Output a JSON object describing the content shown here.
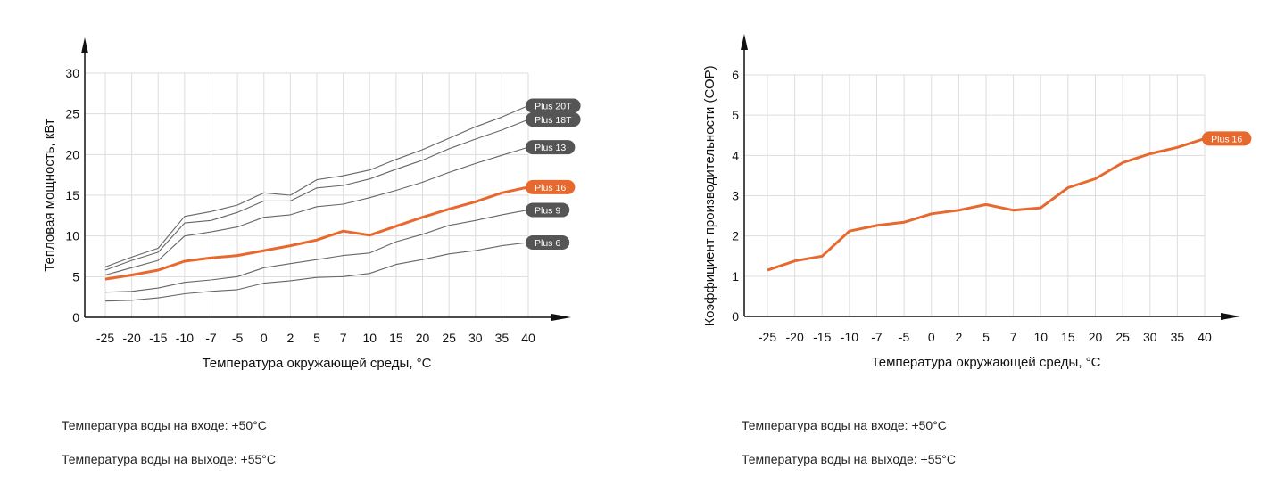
{
  "colors": {
    "accent": "#e8692d",
    "gray_line": "#666666",
    "grid": "#dddddd",
    "axis": "#111111",
    "label_gray": "#555555"
  },
  "chart_data": [
    {
      "type": "line",
      "x": [
        "-25",
        "-20",
        "-15",
        "-10",
        "-7",
        "-5",
        "0",
        "2",
        "5",
        "7",
        "10",
        "15",
        "20",
        "25",
        "30",
        "35",
        "40"
      ],
      "xlabel": "Температура окружающей среды, °С",
      "ylabel": "Тепловая мощность, кВт",
      "yticks": [
        "0",
        "5",
        "10",
        "15",
        "20",
        "25",
        "30"
      ],
      "ylim": [
        0,
        30
      ],
      "grid": true,
      "series": [
        {
          "name": "Plus 20T",
          "color": "#666666",
          "highlight": false,
          "values": [
            6.2,
            7.4,
            8.5,
            12.4,
            13.0,
            13.8,
            15.3,
            15.0,
            16.9,
            17.4,
            18.1,
            19.4,
            20.6,
            22.0,
            23.4,
            24.6,
            26.0
          ]
        },
        {
          "name": "Plus 18T",
          "color": "#666666",
          "highlight": false,
          "values": [
            5.8,
            7.0,
            8.0,
            11.6,
            11.9,
            12.9,
            14.3,
            14.3,
            15.9,
            16.2,
            17.0,
            18.2,
            19.3,
            20.7,
            21.9,
            23.0,
            24.3
          ]
        },
        {
          "name": "Plus 13",
          "color": "#666666",
          "highlight": false,
          "values": [
            5.2,
            6.1,
            7.0,
            10.0,
            10.5,
            11.1,
            12.3,
            12.6,
            13.6,
            13.9,
            14.7,
            15.6,
            16.6,
            17.8,
            18.9,
            19.9,
            20.9
          ]
        },
        {
          "name": "Plus 16",
          "color": "#e8692d",
          "highlight": true,
          "values": [
            4.7,
            5.2,
            5.8,
            6.9,
            7.3,
            7.6,
            8.2,
            8.8,
            9.5,
            10.6,
            10.1,
            11.2,
            12.3,
            13.3,
            14.2,
            15.3,
            16.0
          ]
        },
        {
          "name": "Plus 9",
          "color": "#666666",
          "highlight": false,
          "values": [
            3.1,
            3.2,
            3.6,
            4.3,
            4.6,
            5.0,
            6.1,
            6.6,
            7.1,
            7.6,
            7.9,
            9.3,
            10.2,
            11.3,
            11.9,
            12.6,
            13.2
          ]
        },
        {
          "name": "Plus 6",
          "color": "#666666",
          "highlight": false,
          "values": [
            2.0,
            2.1,
            2.4,
            2.9,
            3.2,
            3.4,
            4.2,
            4.5,
            4.9,
            5.0,
            5.4,
            6.5,
            7.1,
            7.8,
            8.2,
            8.8,
            9.2
          ]
        }
      ]
    },
    {
      "type": "line",
      "x": [
        "-25",
        "-20",
        "-15",
        "-10",
        "-7",
        "-5",
        "0",
        "2",
        "5",
        "7",
        "10",
        "15",
        "20",
        "25",
        "30",
        "35",
        "40"
      ],
      "xlabel": "Температура окружающей среды, °С",
      "ylabel": "Коэффициент производительности (СОР)",
      "yticks": [
        "0",
        "1",
        "2",
        "3",
        "4",
        "5",
        "6"
      ],
      "ylim": [
        0,
        6
      ],
      "grid": true,
      "series": [
        {
          "name": "Plus 16",
          "color": "#e8692d",
          "highlight": true,
          "values": [
            1.15,
            1.38,
            1.5,
            2.12,
            2.26,
            2.34,
            2.55,
            2.64,
            2.78,
            2.64,
            2.7,
            3.2,
            3.42,
            3.82,
            4.04,
            4.2,
            4.42
          ]
        }
      ]
    }
  ],
  "notes": {
    "left_inlet": "Температура воды на входе: +50°С",
    "left_outlet": "Температура воды на выходе: +55°С",
    "right_inlet": "Температура воды на входе: +50°С",
    "right_outlet": "Температура воды на выходе: +55°С"
  }
}
